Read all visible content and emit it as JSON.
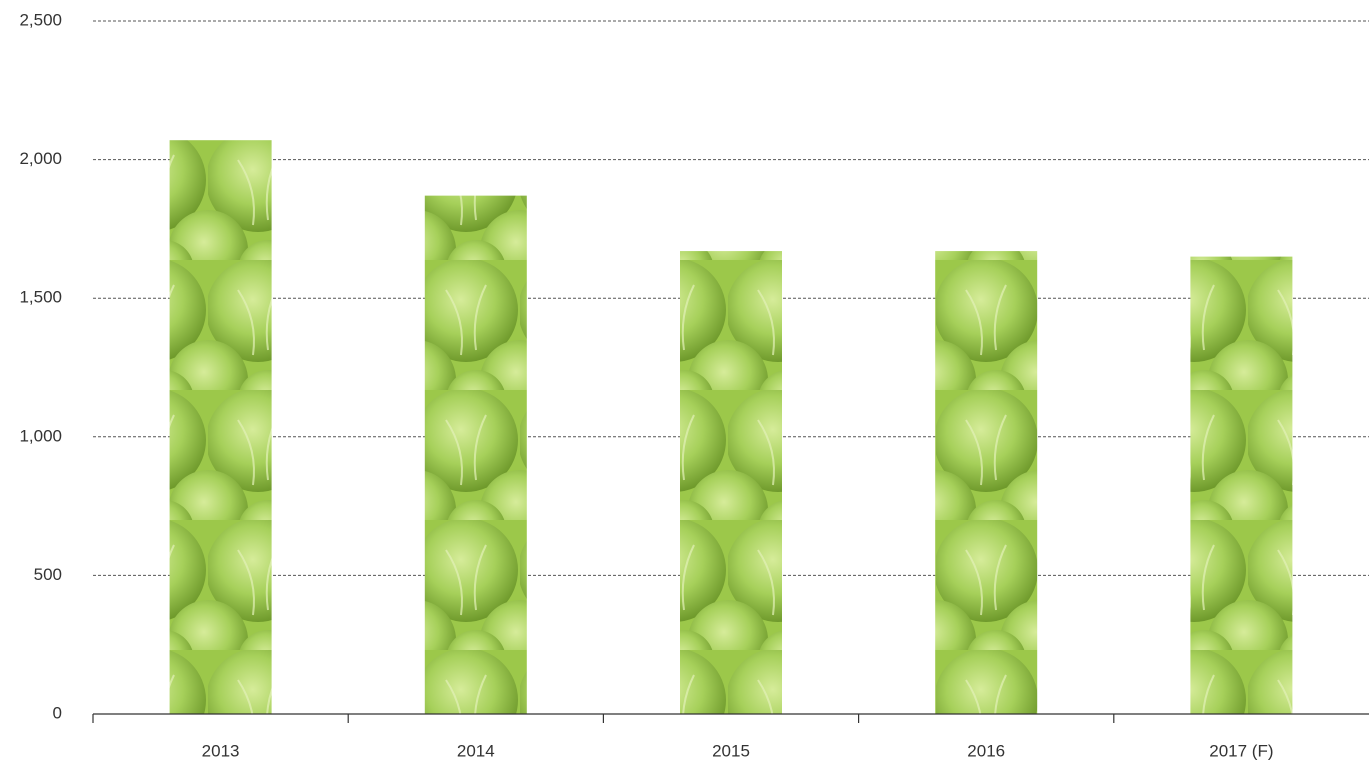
{
  "chart_data": {
    "type": "bar",
    "categories": [
      "2013",
      "2014",
      "2015",
      "2016",
      "2017 (F)"
    ],
    "values": [
      2070,
      1870,
      1670,
      1670,
      1650
    ],
    "color": "#9cc84a",
    "ylim": [
      0,
      2500
    ],
    "yticks": [
      0,
      500,
      {
        "value": 1000,
        "label": "1,000"
      },
      {
        "value": 1500,
        "label": "1,500"
      },
      {
        "value": 2000,
        "label": "2,000"
      },
      {
        "value": 2500,
        "label": "2,500"
      }
    ],
    "grid": true
  }
}
